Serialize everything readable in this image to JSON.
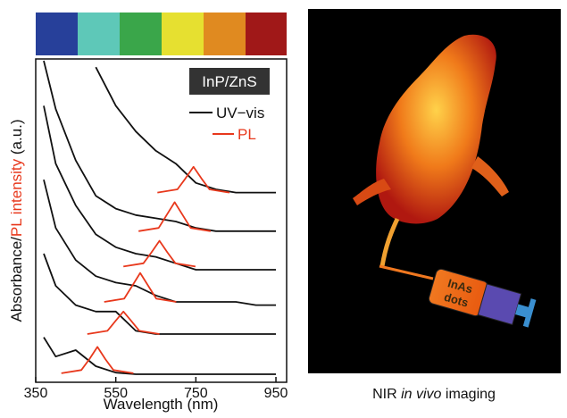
{
  "chart_data": {
    "type": "line",
    "xlabel": "Wavelength (nm)",
    "ylabel": [
      "Absorbance/",
      "PL intensity",
      " (a.u.)"
    ],
    "annotation": "InP/ZnS",
    "legend": [
      {
        "name": "UV−vis",
        "color": "#111111"
      },
      {
        "name": "PL",
        "color": "#e8381c"
      }
    ],
    "xlim": [
      350,
      970
    ],
    "xticks": [
      350,
      550,
      750,
      950
    ],
    "ylim": [
      0,
      100
    ],
    "x": [
      370,
      400,
      450,
      500,
      550,
      600,
      650,
      700,
      750,
      800,
      850,
      900,
      950
    ],
    "uv_vis": [
      {
        "color": "#111111",
        "values": [
          14,
          8,
          10,
          5,
          3,
          2.5,
          2.5,
          2.5,
          2.5,
          2.5,
          2.5,
          2.5,
          2.5
        ]
      },
      {
        "color": "#111111",
        "values": [
          40,
          30,
          24,
          22,
          22,
          16,
          15,
          15,
          15,
          15,
          15,
          15,
          15
        ]
      },
      {
        "color": "#111111",
        "values": [
          63,
          48,
          38,
          33,
          31,
          30,
          27,
          25,
          25,
          25,
          25,
          24,
          24
        ]
      },
      {
        "color": "#111111",
        "values": [
          86,
          68,
          55,
          46,
          42,
          40,
          39,
          37,
          35,
          35,
          35,
          35,
          35
        ]
      },
      {
        "color": "#111111",
        "values": [
          100,
          85,
          69,
          58,
          54,
          52,
          51,
          50,
          48,
          47,
          47,
          47,
          47
        ]
      },
      {
        "color": "#111111",
        "values": [
          null,
          null,
          null,
          98,
          86,
          78,
          72,
          68,
          62,
          60,
          59,
          59,
          59
        ]
      }
    ],
    "pl": [
      {
        "color": "#e8381c",
        "x": [
          414,
          464,
          484,
          504,
          524,
          544,
          594
        ],
        "values": [
          2.8,
          3.8,
          7.2,
          11,
          7.2,
          3.8,
          2.8
        ]
      },
      {
        "color": "#e8381c",
        "x": [
          479,
          529,
          549,
          569,
          589,
          609,
          659
        ],
        "values": [
          15,
          16,
          19,
          22,
          19,
          16,
          15
        ]
      },
      {
        "color": "#e8381c",
        "x": [
          521,
          571,
          591,
          611,
          631,
          651,
          701
        ],
        "values": [
          25,
          26,
          30,
          34,
          30,
          26,
          25
        ]
      },
      {
        "color": "#e8381c",
        "x": [
          569,
          619,
          639,
          659,
          679,
          699,
          749
        ],
        "values": [
          36,
          37,
          40.4,
          44,
          40.4,
          37,
          36
        ]
      },
      {
        "color": "#e8381c",
        "x": [
          607,
          657,
          677,
          697,
          717,
          737,
          787
        ],
        "values": [
          47,
          48,
          52,
          56,
          52,
          48,
          47
        ]
      },
      {
        "color": "#e8381c",
        "x": [
          654,
          704,
          724,
          744,
          764,
          784,
          834
        ],
        "values": [
          59,
          60,
          63.4,
          67,
          63.4,
          60,
          59
        ]
      }
    ]
  },
  "image_panel": {
    "syringe_label": [
      "InAs",
      "dots"
    ],
    "caption": [
      "NIR ",
      "in vivo",
      " imaging"
    ]
  }
}
